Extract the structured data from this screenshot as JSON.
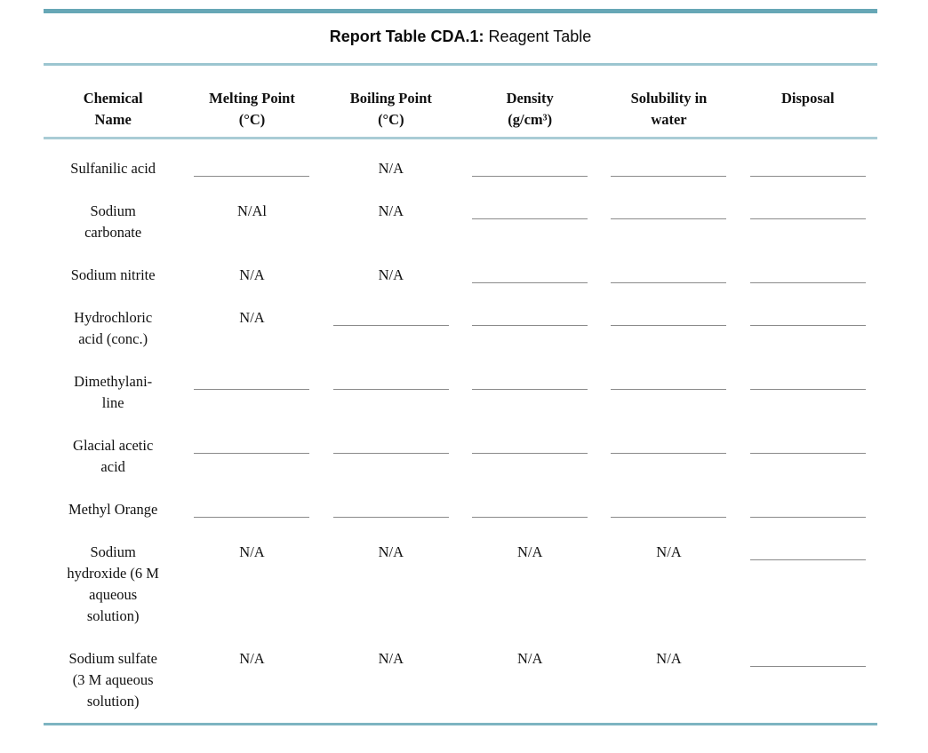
{
  "title": {
    "bold": "Report Table CDA.1:",
    "regular": "Reagent Table"
  },
  "blank_token": "__blank__",
  "table": {
    "columns": [
      {
        "key": "chemical-name",
        "lines": [
          "Chemical",
          "Name"
        ]
      },
      {
        "key": "melting-point",
        "lines": [
          "Melting Point",
          "(°C)"
        ]
      },
      {
        "key": "boiling-point",
        "lines": [
          "Boiling Point",
          "(°C)"
        ]
      },
      {
        "key": "density",
        "lines": [
          "Density",
          "(g/cm³)"
        ]
      },
      {
        "key": "solubility",
        "lines": [
          "Solubility in",
          "water"
        ]
      },
      {
        "key": "disposal",
        "lines": [
          "Disposal"
        ]
      }
    ],
    "rows": [
      {
        "name": "Sulfanilic acid",
        "name_lines": [
          "Sulfanilic acid"
        ],
        "cells": [
          "__blank__",
          "N/A",
          "__blank__",
          "__blank__",
          "__blank__"
        ]
      },
      {
        "name": "Sodium carbonate",
        "name_lines": [
          "Sodium",
          "carbonate"
        ],
        "cells": [
          "N/Al",
          "N/A",
          "__blank__",
          "__blank__",
          "__blank__"
        ]
      },
      {
        "name": "Sodium nitrite",
        "name_lines": [
          "Sodium nitrite"
        ],
        "cells": [
          "N/A",
          "N/A",
          "__blank__",
          "__blank__",
          "__blank__"
        ]
      },
      {
        "name": "Hydrochloric acid (conc.)",
        "name_lines": [
          "Hydrochloric",
          "acid (conc.)"
        ],
        "cells": [
          "N/A",
          "__blank__",
          "__blank__",
          "__blank__",
          "__blank__"
        ]
      },
      {
        "name": "Dimethylaniline",
        "name_lines": [
          "Dimethylani-",
          "line"
        ],
        "cells": [
          "__blank__",
          "__blank__",
          "__blank__",
          "__blank__",
          "__blank__"
        ]
      },
      {
        "name": "Glacial acetic acid",
        "name_lines": [
          "Glacial acetic",
          "acid"
        ],
        "cells": [
          "__blank__",
          "__blank__",
          "__blank__",
          "__blank__",
          "__blank__"
        ]
      },
      {
        "name": "Methyl Orange",
        "name_lines": [
          "Methyl Orange"
        ],
        "cells": [
          "__blank__",
          "__blank__",
          "__blank__",
          "__blank__",
          "__blank__"
        ]
      },
      {
        "name": "Sodium hydroxide (6 M aqueous solution)",
        "name_lines": [
          "Sodium",
          "hydroxide (6 M",
          "aqueous",
          "solution)"
        ],
        "cells": [
          "N/A",
          "N/A",
          "N/A",
          "N/A",
          "__blank__"
        ]
      },
      {
        "name": "Sodium sulfate (3 M aqueous solution)",
        "name_lines": [
          "Sodium sulfate",
          "(3 M aqueous",
          "solution)"
        ],
        "cells": [
          "N/A",
          "N/A",
          "N/A",
          "N/A",
          "__blank__"
        ]
      }
    ]
  },
  "colors": {
    "rule_top": "#67a7b6",
    "rule_thin": "#9cc5d0",
    "rule_bottom": "#7db4c1",
    "blank_line": "#8a8a8a",
    "text": "#111111"
  }
}
